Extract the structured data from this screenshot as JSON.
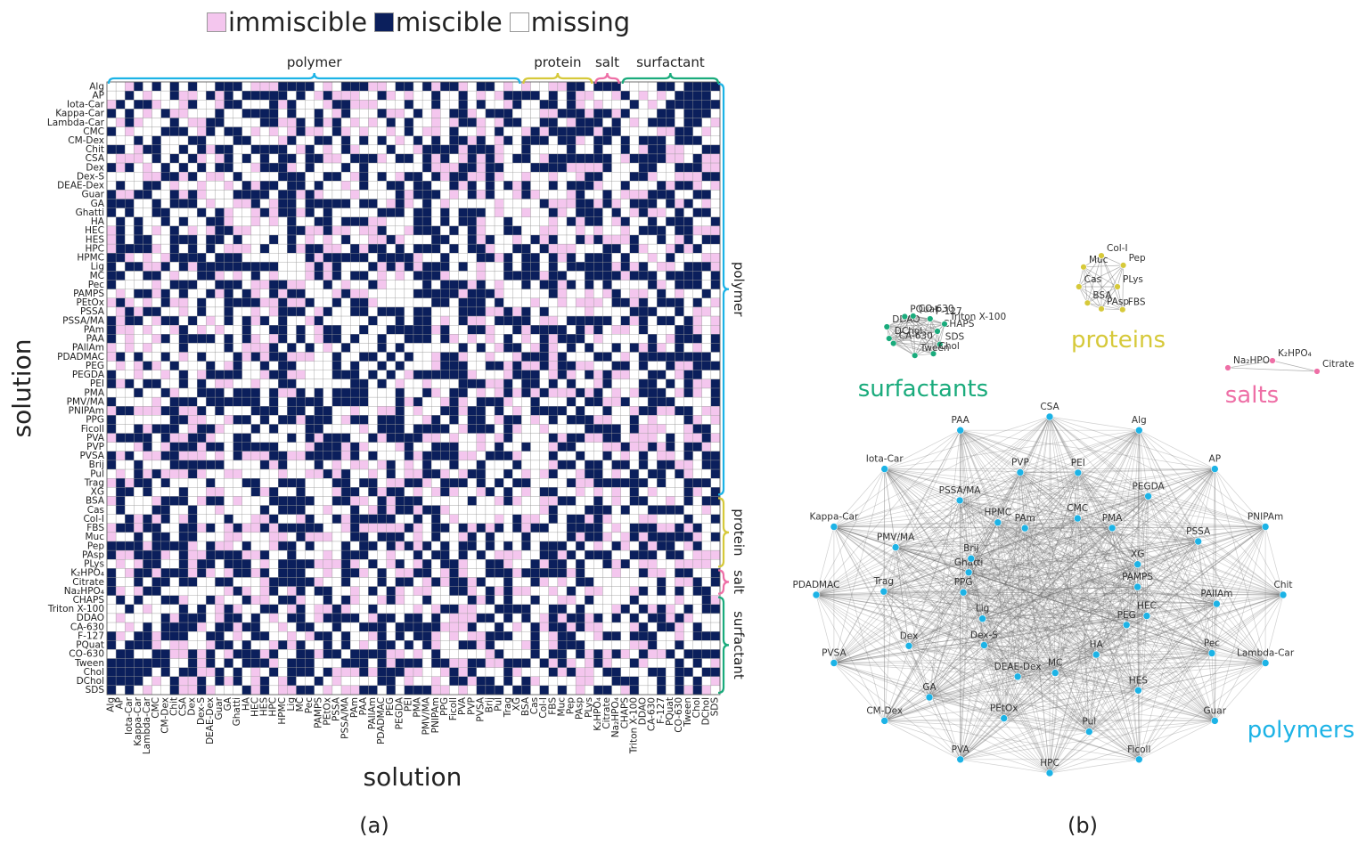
{
  "legend": {
    "items": [
      {
        "label": "immiscible",
        "color": "#f4c6ee"
      },
      {
        "label": "miscible",
        "color": "#0b1f5c"
      },
      {
        "label": "missing",
        "color": "#ffffff"
      }
    ]
  },
  "panel_labels": {
    "a": "(a)",
    "b": "(b)"
  },
  "colors": {
    "polymer": "#1cb3e6",
    "protein": "#d6c93a",
    "salt": "#ee6fa6",
    "surfactant": "#1aab7c",
    "immiscible": "#f4c6ee",
    "miscible": "#0b1f5c",
    "missing": "#ffffff"
  },
  "chart_data": [
    {
      "type": "heatmap",
      "xlabel": "solution",
      "ylabel": "solution",
      "labels": [
        "Alg",
        "AP",
        "Iota-Car",
        "Kappa-Car",
        "Lambda-Car",
        "CMC",
        "CM-Dex",
        "Chit",
        "CSA",
        "Dex",
        "Dex-S",
        "DEAE-Dex",
        "Guar",
        "GA",
        "Ghatti",
        "HA",
        "HEC",
        "HES",
        "HPC",
        "HPMC",
        "Lig",
        "MC",
        "Pec",
        "PAMPS",
        "PEtOx",
        "PSSA",
        "PSSA/MA",
        "PAm",
        "PAA",
        "PAllAm",
        "PDADMAC",
        "PEG",
        "PEGDA",
        "PEI",
        "PMA",
        "PMV/MA",
        "PNIPAm",
        "PPG",
        "Ficoll",
        "PVA",
        "PVP",
        "PVSA",
        "Brij",
        "Pul",
        "Trag",
        "XG",
        "BSA",
        "Cas",
        "Col-I",
        "FBS",
        "Muc",
        "Pep",
        "PAsp",
        "PLys",
        "K₂HPO₄",
        "Citrate",
        "Na₂HPO₄",
        "CHAPS",
        "Triton X-100",
        "DDAO",
        "CA-630",
        "F-127",
        "PQuat",
        "CO-630",
        "Tween",
        "Chol",
        "DChol",
        "SDS"
      ],
      "groups": [
        {
          "name": "polymer",
          "count": 46
        },
        {
          "name": "protein",
          "count": 8
        },
        {
          "name": "salt",
          "count": 3
        },
        {
          "name": "surfactant",
          "count": 11
        }
      ],
      "value_classes": [
        "immiscible",
        "miscible",
        "missing"
      ]
    },
    {
      "type": "network",
      "clusters": [
        {
          "name": "polymers",
          "nodes": [
            "CSA",
            "Alg",
            "AP",
            "PNIPAm",
            "Chit",
            "Lambda-Car",
            "Guar",
            "Ficoll",
            "HPC",
            "PVA",
            "CM-Dex",
            "PVSA",
            "PDADMAC",
            "Kappa-Car",
            "Iota-Car",
            "PAA",
            "PEI",
            "PEGDA",
            "PSSA",
            "PAllAm",
            "Pec",
            "HES",
            "Pul",
            "PEtOx",
            "GA",
            "Dex",
            "Trag",
            "PMV/MA",
            "PSSA/MA",
            "PVP",
            "CMC",
            "PMA",
            "XG",
            "PAMPS",
            "HEC",
            "PEG",
            "HA",
            "MC",
            "DEAE-Dex",
            "Dex-S",
            "Lig",
            "PPG",
            "Ghatti",
            "Brij",
            "HPMC",
            "PAm"
          ]
        },
        {
          "name": "proteins",
          "nodes": [
            "PLys",
            "FBS",
            "PAsp",
            "BSA",
            "Cas",
            "Muc",
            "Col-I",
            "Pep"
          ]
        },
        {
          "name": "surfactants",
          "nodes": [
            "CHAPS",
            "SDS",
            "Chol",
            "Tween",
            "CA-630",
            "DChol",
            "DDAO",
            "PQuat",
            "CO-630",
            "F-127",
            "Triton X-100"
          ]
        },
        {
          "name": "salts",
          "nodes": [
            "Na₂HPO₄",
            "K₂HPO₄",
            "Citrate"
          ]
        }
      ]
    }
  ]
}
